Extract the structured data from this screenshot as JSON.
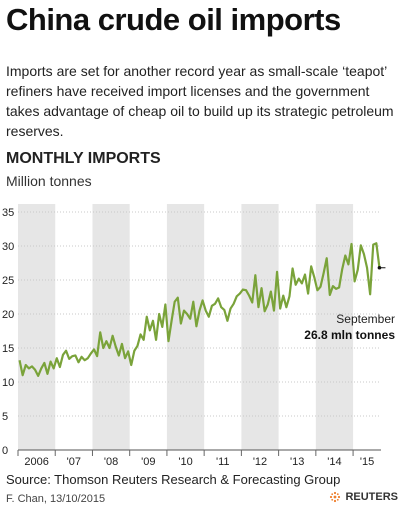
{
  "header": {
    "title": "China crude oil imports",
    "subtitle": "Imports are set for another record year as small-scale ‘teapot’ refiners have received import licenses and the government takes advantage of cheap oil to build up its strategic petroleum reserves.",
    "section": "MONTHLY IMPORTS",
    "units": "Million tonnes"
  },
  "chart_data": {
    "type": "line",
    "title": "MONTHLY IMPORTS",
    "ylabel": "Million tonnes",
    "ylim": [
      0,
      35
    ],
    "yticks": [
      0,
      5,
      10,
      15,
      20,
      25,
      30,
      35
    ],
    "grid": true,
    "x_start": "2006-01",
    "x_end": "2015-09",
    "year_labels": [
      "2006",
      "'07",
      "'08",
      "'09",
      "'10",
      "'11",
      "'12",
      "'13",
      "'14",
      "'15"
    ],
    "series": [
      {
        "name": "",
        "color": "#7aa33a",
        "values": [
          13.2,
          11.0,
          12.5,
          12.0,
          12.3,
          11.8,
          10.9,
          12.0,
          12.8,
          11.2,
          13.0,
          12.0,
          13.5,
          12.2,
          14.0,
          14.6,
          13.4,
          13.8,
          13.9,
          12.9,
          13.7,
          13.2,
          13.5,
          14.2,
          14.8,
          13.8,
          17.3,
          15.0,
          16.0,
          15.0,
          16.8,
          15.2,
          13.9,
          15.6,
          13.5,
          14.5,
          12.5,
          14.6,
          15.3,
          17.0,
          16.2,
          19.6,
          17.6,
          19.0,
          16.2,
          20.0,
          18.1,
          21.4,
          16.0,
          19.0,
          21.8,
          22.4,
          18.6,
          20.5,
          20.0,
          19.3,
          21.8,
          18.2,
          20.5,
          22.0,
          20.5,
          19.6,
          21.2,
          21.5,
          22.3,
          21.0,
          20.6,
          19.0,
          20.8,
          21.5,
          22.6,
          23.0,
          23.6,
          23.5,
          22.7,
          21.7,
          25.7,
          21.0,
          23.8,
          20.4,
          21.4,
          23.3,
          20.5,
          26.2,
          20.8,
          22.7,
          21.0,
          22.6,
          26.7,
          24.3,
          25.2,
          24.5,
          25.8,
          23.0,
          27.0,
          25.4,
          23.5,
          24.0,
          26.0,
          28.2,
          22.8,
          24.1,
          23.7,
          23.9,
          26.6,
          28.6,
          27.3,
          30.3,
          24.8,
          26.5,
          30.1,
          28.8,
          26.8,
          22.9,
          30.2,
          30.4,
          26.8
        ]
      }
    ],
    "annotation": {
      "month": "2015-09",
      "label": "September",
      "value_label": "26.8 mln tonnes",
      "value": 26.8
    }
  },
  "footer": {
    "source": "Source: Thomson Reuters Research & Forecasting Group",
    "credit": "F. Chan, 13/10/2015",
    "brand": "REUTERS"
  },
  "colors": {
    "band": "#e6e6e6",
    "line": "#7aa33a",
    "grid": "#c8c8c8",
    "text": "#1a1a1a"
  }
}
